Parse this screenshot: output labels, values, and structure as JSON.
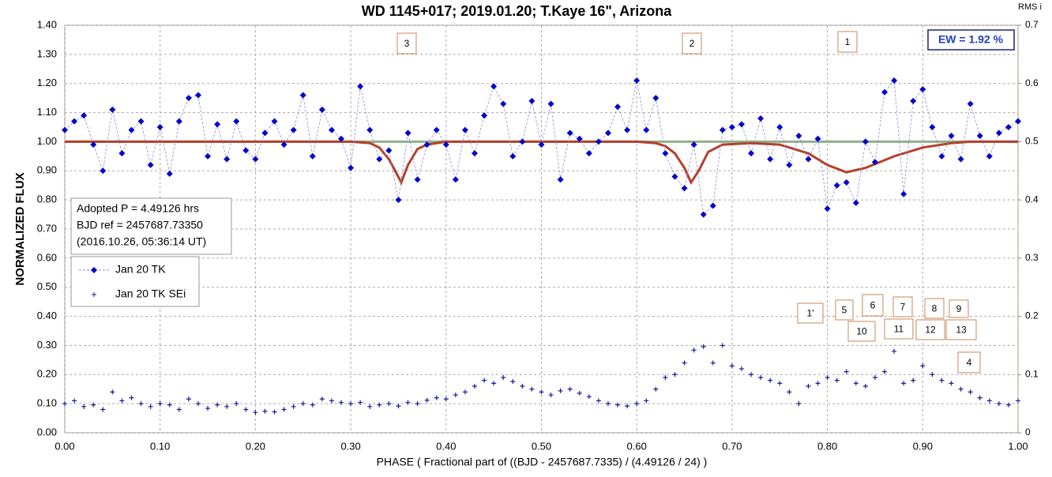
{
  "chart_data": {
    "type": "scatter",
    "title": "WD 1145+017; 2019.01.20; T.Kaye 16\", Arizona",
    "xlabel": "PHASE ( Fractional part of ((BJD - 2457687.7335) / (4.49126 / 24) )",
    "ylabel": "NORMALIZED FLUX",
    "y2label": "RMS i",
    "xlim": [
      0,
      1
    ],
    "ylim": [
      0,
      1.4
    ],
    "y2lim": [
      0,
      0.7
    ],
    "xticks": [
      {
        "value": 0,
        "label": "0.00"
      },
      {
        "value": 0.1,
        "label": "0.10"
      },
      {
        "value": 0.2,
        "label": "0.20"
      },
      {
        "value": 0.3,
        "label": "0.30"
      },
      {
        "value": 0.4,
        "label": "0.40"
      },
      {
        "value": 0.5,
        "label": "0.50"
      },
      {
        "value": 0.6,
        "label": "0.60"
      },
      {
        "value": 0.7,
        "label": "0.70"
      },
      {
        "value": 0.8,
        "label": "0.80"
      },
      {
        "value": 0.9,
        "label": "0.90"
      },
      {
        "value": 1,
        "label": "1.00"
      }
    ],
    "yticks": [
      {
        "value": 0,
        "label": "0.00"
      },
      {
        "value": 0.1,
        "label": "0.10"
      },
      {
        "value": 0.2,
        "label": "0.20"
      },
      {
        "value": 0.3,
        "label": "0.30"
      },
      {
        "value": 0.4,
        "label": "0.40"
      },
      {
        "value": 0.5,
        "label": "0.50"
      },
      {
        "value": 0.6,
        "label": "0.60"
      },
      {
        "value": 0.7,
        "label": "0.70"
      },
      {
        "value": 0.8,
        "label": "0.80"
      },
      {
        "value": 0.9,
        "label": "0.90"
      },
      {
        "value": 1,
        "label": "1.00"
      },
      {
        "value": 1.1,
        "label": "1.10"
      },
      {
        "value": 1.2,
        "label": "1.20"
      },
      {
        "value": 1.3,
        "label": "1.30"
      },
      {
        "value": 1.4,
        "label": "1.40"
      }
    ],
    "y2ticks": [
      0,
      0.1,
      0.2,
      0.3,
      0.4,
      0.5,
      0.6,
      0.7
    ],
    "grid": true,
    "x": [
      0,
      0.01,
      0.02,
      0.03,
      0.04,
      0.05,
      0.06,
      0.07,
      0.08,
      0.09,
      0.1,
      0.11,
      0.12,
      0.13,
      0.14,
      0.15,
      0.16,
      0.17,
      0.18,
      0.19,
      0.2,
      0.21,
      0.22,
      0.23,
      0.24,
      0.25,
      0.26,
      0.27,
      0.28,
      0.29,
      0.3,
      0.31,
      0.32,
      0.33,
      0.34,
      0.35,
      0.36,
      0.37,
      0.38,
      0.39,
      0.4,
      0.41,
      0.42,
      0.43,
      0.44,
      0.45,
      0.46,
      0.47,
      0.48,
      0.49,
      0.5,
      0.51,
      0.52,
      0.53,
      0.54,
      0.55,
      0.56,
      0.57,
      0.58,
      0.59,
      0.6,
      0.61,
      0.62,
      0.63,
      0.64,
      0.65,
      0.66,
      0.67,
      0.68,
      0.69,
      0.7,
      0.71,
      0.72,
      0.73,
      0.74,
      0.75,
      0.76,
      0.77,
      0.78,
      0.79,
      0.8,
      0.81,
      0.82,
      0.83,
      0.84,
      0.85,
      0.86,
      0.87,
      0.88,
      0.89,
      0.9,
      0.91,
      0.92,
      0.93,
      0.94,
      0.95,
      0.96,
      0.97,
      0.98,
      0.99,
      1
    ],
    "series": [
      {
        "name": "Jan 20 TK",
        "color": "#0000cc",
        "marker": "diamond",
        "values": [
          1.04,
          1.07,
          1.09,
          0.99,
          0.9,
          1.11,
          0.96,
          1.04,
          1.07,
          0.92,
          1.05,
          0.89,
          1.07,
          1.15,
          1.16,
          0.95,
          1.06,
          0.94,
          1.07,
          0.97,
          0.94,
          1.03,
          1.07,
          0.99,
          1.04,
          1.16,
          0.95,
          1.11,
          1.04,
          1.01,
          0.91,
          1.19,
          1.04,
          0.94,
          0.97,
          0.8,
          1.03,
          0.87,
          0.99,
          1.04,
          0.99,
          0.87,
          1.04,
          0.96,
          1.09,
          1.19,
          1.13,
          0.95,
          1.0,
          1.14,
          0.99,
          1.13,
          0.87,
          1.03,
          1.01,
          0.96,
          1.0,
          1.03,
          1.12,
          1.04,
          1.21,
          1.04,
          1.15,
          0.96,
          0.88,
          0.84,
          0.99,
          0.75,
          0.78,
          1.04,
          1.05,
          1.06,
          0.96,
          1.08,
          0.94,
          1.05,
          0.92,
          1.02,
          0.94,
          1.01,
          0.77,
          0.85,
          0.86,
          0.79,
          1.0,
          0.93,
          1.17,
          1.21,
          0.82,
          1.14,
          1.18,
          1.05,
          0.95,
          1.02,
          0.94,
          1.13,
          1.02,
          0.95,
          1.03,
          1.05,
          1.07
        ]
      },
      {
        "name": "Jan 20 TK SEi",
        "color": "#1a1a99",
        "marker": "plus",
        "axis": "y2",
        "values": [
          0.05,
          0.055,
          0.045,
          0.048,
          0.04,
          0.07,
          0.055,
          0.06,
          0.05,
          0.045,
          0.05,
          0.048,
          0.04,
          0.058,
          0.05,
          0.042,
          0.048,
          0.045,
          0.05,
          0.04,
          0.035,
          0.037,
          0.036,
          0.04,
          0.045,
          0.05,
          0.048,
          0.058,
          0.055,
          0.052,
          0.05,
          0.052,
          0.045,
          0.048,
          0.05,
          0.046,
          0.052,
          0.05,
          0.056,
          0.06,
          0.058,
          0.065,
          0.07,
          0.08,
          0.09,
          0.085,
          0.095,
          0.088,
          0.08,
          0.075,
          0.07,
          0.065,
          0.072,
          0.075,
          0.068,
          0.062,
          0.055,
          0.05,
          0.048,
          0.046,
          0.05,
          0.055,
          0.075,
          0.095,
          0.1,
          0.12,
          0.142,
          0.148,
          0.12,
          0.15,
          0.115,
          0.11,
          0.1,
          0.095,
          0.09,
          0.085,
          0.07,
          0.05,
          0.08,
          0.085,
          0.095,
          0.09,
          0.105,
          0.085,
          0.08,
          0.095,
          0.105,
          0.14,
          0.085,
          0.09,
          0.115,
          0.1,
          0.09,
          0.085,
          0.075,
          0.07,
          0.06,
          0.055,
          0.05,
          0.048,
          0.055
        ]
      }
    ],
    "model": {
      "color": "#b5402a",
      "x": [
        0,
        0.3,
        0.32,
        0.33,
        0.34,
        0.345,
        0.353,
        0.36,
        0.37,
        0.38,
        0.4,
        0.6,
        0.62,
        0.63,
        0.64,
        0.65,
        0.657,
        0.665,
        0.675,
        0.69,
        0.72,
        0.75,
        0.78,
        0.8,
        0.82,
        0.84,
        0.87,
        0.9,
        0.93,
        0.95,
        1
      ],
      "values": [
        1,
        1,
        0.995,
        0.98,
        0.94,
        0.91,
        0.86,
        0.92,
        0.975,
        0.99,
        1,
        1,
        0.995,
        0.985,
        0.96,
        0.91,
        0.86,
        0.9,
        0.965,
        0.99,
        0.995,
        0.99,
        0.96,
        0.92,
        0.895,
        0.91,
        0.95,
        0.98,
        0.995,
        1,
        1
      ]
    },
    "baseline": {
      "value": 1,
      "color": "#8fb08a"
    },
    "legend": "left",
    "info_lines": [
      "Adopted P = 4.49126 hrs",
      "BJD ref = 2457687.73350",
      "(2016.10.26, 05:36:14 UT)"
    ],
    "ew_label": "EW =  1.92 %",
    "annotations": [
      "3",
      "2",
      "1",
      "1'",
      "5",
      "6",
      "7",
      "8",
      "9",
      "10",
      "11",
      "12",
      "13",
      "4"
    ]
  }
}
